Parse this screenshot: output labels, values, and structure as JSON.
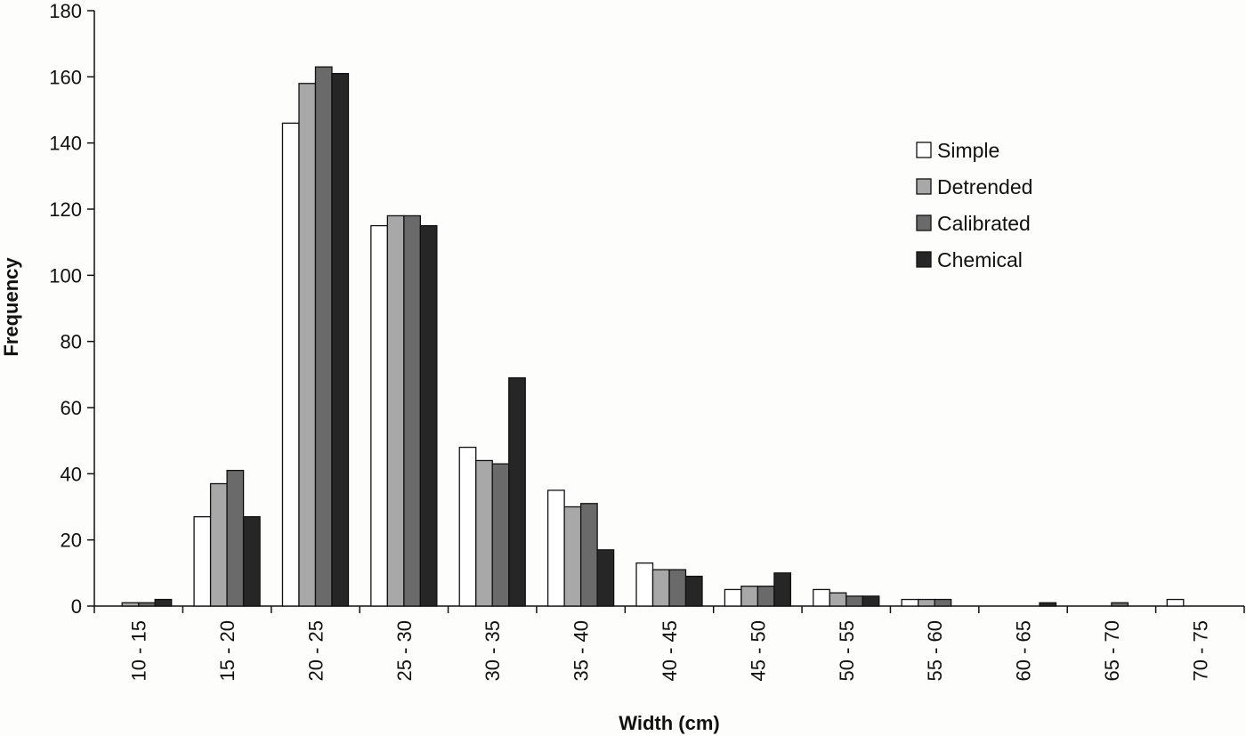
{
  "chart_data": {
    "type": "bar",
    "title": "",
    "xlabel": "Width (cm)",
    "ylabel": "Frequency",
    "ylim": [
      0,
      180
    ],
    "yticks": [
      0,
      20,
      40,
      60,
      80,
      100,
      120,
      140,
      160,
      180
    ],
    "grid": false,
    "legend_position": "top-right",
    "categories": [
      "10 - 15",
      "15 - 20",
      "20 - 25",
      "25 - 30",
      "30 - 35",
      "35 - 40",
      "40 - 45",
      "45 - 50",
      "50 - 55",
      "55 - 60",
      "60 - 65",
      "65 - 70",
      "70 - 75"
    ],
    "series": [
      {
        "name": "Simple",
        "color": "#ffffff",
        "values": [
          0,
          27,
          146,
          115,
          48,
          35,
          13,
          5,
          5,
          2,
          0,
          0,
          2
        ]
      },
      {
        "name": "Detrended",
        "color": "#a8a8a8",
        "values": [
          1,
          37,
          158,
          118,
          44,
          30,
          11,
          6,
          4,
          2,
          0,
          0,
          0
        ]
      },
      {
        "name": "Calibrated",
        "color": "#6a6a6a",
        "values": [
          1,
          41,
          163,
          118,
          43,
          31,
          11,
          6,
          3,
          2,
          0,
          1,
          0
        ]
      },
      {
        "name": "Chemical",
        "color": "#262626",
        "values": [
          2,
          27,
          161,
          115,
          69,
          17,
          9,
          10,
          3,
          0,
          1,
          0,
          0
        ]
      }
    ]
  }
}
